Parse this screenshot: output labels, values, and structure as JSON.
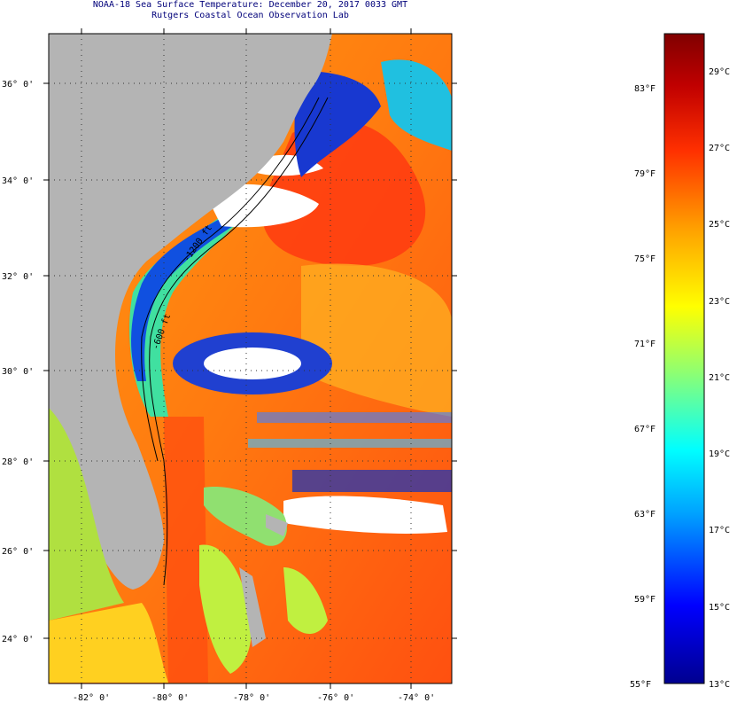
{
  "title": {
    "line1": "NOAA-18 Sea Surface Temperature:  December 20, 2017 0033 GMT",
    "line2": "Rutgers Coastal Ocean Observation Lab"
  },
  "map": {
    "lat_labels": [
      "36° 0'",
      "34° 0'",
      "32° 0'",
      "30° 0'",
      "28° 0'",
      "26° 0'",
      "24° 0'"
    ],
    "lon_labels": [
      "-82° 0'",
      "-80° 0'",
      "-78° 0'",
      "-76° 0'",
      "-74° 0'"
    ],
    "contour_labels": [
      "-1200 ft",
      "-600 ft"
    ],
    "land_color": "#b4b4b4",
    "cloud_color": "#ffffff"
  },
  "colorbar": {
    "f_labels": [
      "83°F",
      "79°F",
      "75°F",
      "71°F",
      "67°F",
      "63°F",
      "59°F",
      "55°F"
    ],
    "c_labels": [
      "29°C",
      "27°C",
      "25°C",
      "23°C",
      "21°C",
      "19°C",
      "17°C",
      "15°C",
      "13°C"
    ],
    "min_c": 13,
    "max_c": 30,
    "colors": [
      "#00008f",
      "#0000ff",
      "#00a0ff",
      "#00ffff",
      "#90ff70",
      "#ffff00",
      "#ffa000",
      "#ff3000",
      "#b00000",
      "#800000"
    ]
  }
}
